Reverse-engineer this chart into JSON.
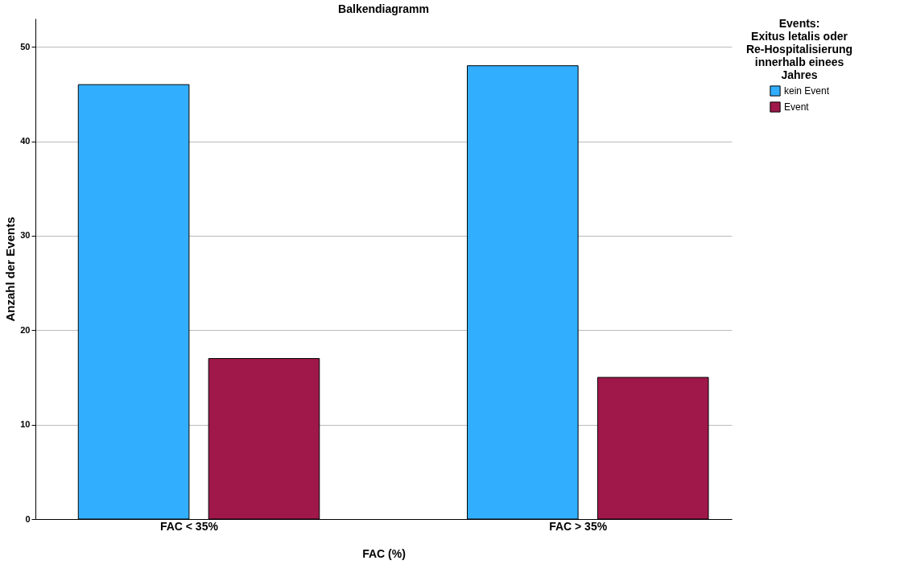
{
  "chart_data": {
    "type": "bar",
    "title": "Balkendiagramm",
    "xlabel": "FAC (%)",
    "ylabel": "Anzahl der Events",
    "legend_title": "Events:\nExitus letalis oder\nRe-Hospitalisierung\ninnerhalb einees\nJahres",
    "categories": [
      "FAC < 35%",
      "FAC > 35%"
    ],
    "series": [
      {
        "name": "kein Event",
        "color": "#31aefd",
        "values": [
          46,
          48
        ]
      },
      {
        "name": "Event",
        "color": "#a0174a",
        "values": [
          17,
          15
        ]
      }
    ],
    "ylim": [
      0,
      53
    ],
    "yticks": [
      0,
      10,
      20,
      30,
      40,
      50
    ],
    "grid": "y",
    "legend": "top right"
  }
}
